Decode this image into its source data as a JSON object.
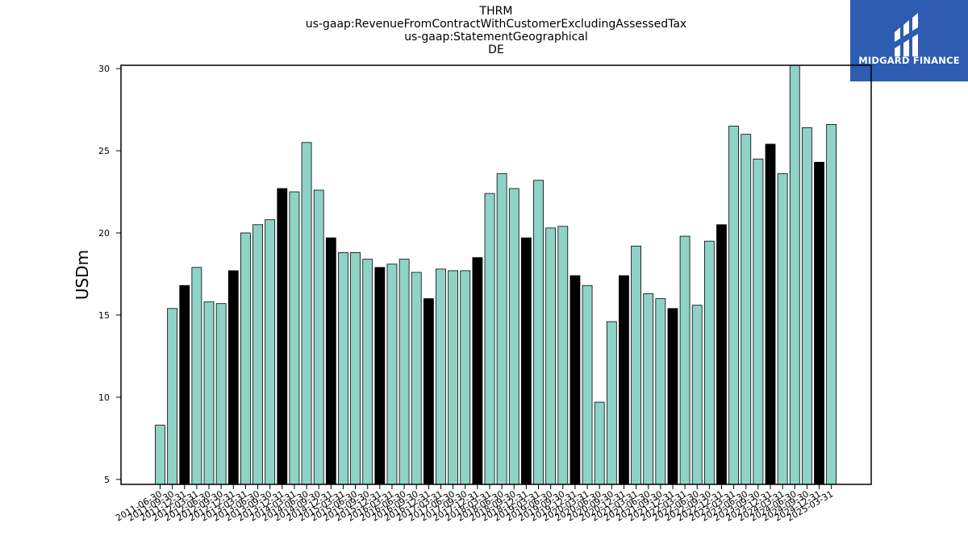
{
  "title_lines": [
    "THRM",
    "us-gaap:RevenueFromContractWithCustomerExcludingAssessedTax",
    "us-gaap:StatementGeographical",
    "DE"
  ],
  "logo": {
    "text": "MIDGARD FINANCE",
    "background": "#2d5cb0"
  },
  "colors": {
    "bar_default": "#8fd3c7",
    "bar_highlight": "#000000",
    "edge": "#000000"
  },
  "chart_data": {
    "type": "bar",
    "ylabel": "USDm",
    "xlabel": "",
    "ylim": [
      4.7,
      30.2
    ],
    "yticks": [
      5,
      10,
      15,
      20,
      25,
      30
    ],
    "categories": [
      "2011-06-30",
      "2011-09-30",
      "2011-12-31",
      "2012-03-31",
      "2012-06-30",
      "2012-09-30",
      "2012-12-31",
      "2013-03-31",
      "2013-06-30",
      "2013-09-30",
      "2013-12-31",
      "2014-03-31",
      "2014-06-30",
      "2014-09-30",
      "2014-12-31",
      "2015-03-31",
      "2015-06-30",
      "2015-09-30",
      "2015-12-31",
      "2016-03-31",
      "2016-06-30",
      "2016-09-30",
      "2016-12-31",
      "2017-03-31",
      "2017-06-30",
      "2017-09-30",
      "2017-12-31",
      "2018-03-31",
      "2018-06-30",
      "2018-09-30",
      "2018-12-31",
      "2019-03-31",
      "2019-06-30",
      "2019-09-30",
      "2019-12-31",
      "2020-03-31",
      "2020-06-30",
      "2020-09-30",
      "2020-12-31",
      "2021-03-31",
      "2021-06-30",
      "2021-09-30",
      "2021-12-31",
      "2022-03-31",
      "2022-06-30",
      "2022-09-30",
      "2022-12-31",
      "2023-03-31",
      "2023-06-30",
      "2023-09-30",
      "2023-12-31",
      "2024-03-31",
      "2024-06-30",
      "2024-09-30",
      "2024-12-31",
      "2025-03-31"
    ],
    "tick_labels": [
      "2011-06-30",
      "2011-09-30",
      "2011-12-31",
      "2012-03-31",
      "2012-06-30",
      "2012-09-30",
      "2012-12-31",
      "2013-03-31",
      "2013-06-30",
      "2013-09-30",
      "2013-12-31",
      "2014-03-31",
      "2014-06-30",
      "2014-09-30",
      "2014-12-31",
      "2015-03-31",
      "2015-06-30",
      "2015-09-30",
      "2015-12-31",
      "2016-03-31",
      "2016-06-30",
      "2016-09-30",
      "2016-12-31",
      "2017-03-31",
      "2017-06-30",
      "2017-09-30",
      "2017-12-31",
      "2018-03-31",
      "2018-06-30",
      "2018-09-30",
      "2018-12-31",
      "2019-03-31",
      "2019-06-30",
      "2019-09-30",
      "2019-12-31",
      "2020-03-31",
      "2020-06-30",
      "2020-09-30",
      "2020-12-31",
      "2021-03-31",
      "2021-06-30",
      "2021-09-30",
      "2021-12-31",
      "2022-03-31",
      "2022-06-30",
      "2022-09-30",
      "2022-12-31",
      "2023-03-31",
      "2023-06-30",
      "2023-09-30",
      "2023-12-31",
      "2024-03-31",
      "2024-06-30",
      "2024-09-30",
      "2024-12-31",
      "2025-03-31"
    ],
    "values": [
      8.3,
      15.4,
      16.8,
      17.9,
      15.8,
      15.7,
      17.7,
      20.0,
      20.5,
      20.8,
      22.7,
      22.5,
      25.5,
      22.6,
      19.7,
      18.8,
      18.8,
      18.4,
      17.9,
      18.1,
      18.4,
      17.6,
      16.0,
      17.8,
      17.7,
      17.7,
      18.5,
      22.4,
      23.6,
      22.7,
      19.7,
      23.2,
      20.3,
      20.4,
      17.4,
      16.8,
      9.7,
      14.6,
      17.4,
      19.2,
      16.3,
      16.0,
      15.4,
      19.8,
      15.6,
      19.5,
      20.5,
      26.5,
      26.0,
      24.5,
      25.4,
      23.6,
      30.3,
      26.4,
      24.3,
      26.6
    ],
    "highlight": [
      false,
      false,
      true,
      false,
      false,
      false,
      true,
      false,
      false,
      false,
      true,
      false,
      false,
      false,
      true,
      false,
      false,
      false,
      true,
      false,
      false,
      false,
      true,
      false,
      false,
      false,
      true,
      false,
      false,
      false,
      true,
      false,
      false,
      false,
      true,
      false,
      false,
      false,
      true,
      false,
      false,
      false,
      true,
      false,
      false,
      false,
      true,
      false,
      false,
      false,
      true,
      false,
      false,
      false,
      true,
      false
    ]
  }
}
